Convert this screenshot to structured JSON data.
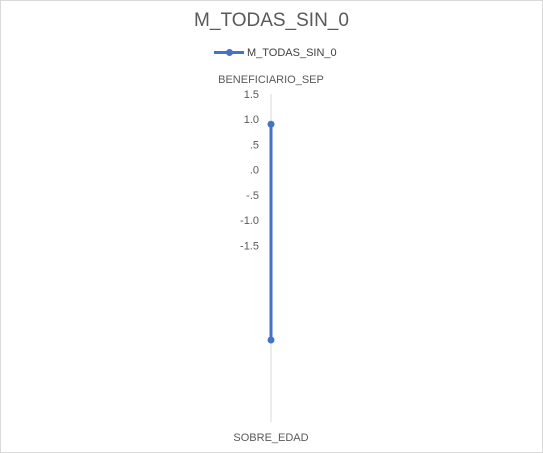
{
  "chart_data": {
    "type": "radar",
    "title": "M_TODAS_SIN_0",
    "legend": {
      "position": "top",
      "entries": [
        "M_TODAS_SIN_0"
      ]
    },
    "categories": [
      "BENEFICIARIO_SEP",
      "SOBRE_EDAD"
    ],
    "series": [
      {
        "name": "M_TODAS_SIN_0",
        "values": [
          0.9,
          -2.99
        ],
        "color": "#4472C4"
      }
    ],
    "radial_axis": {
      "ticks": [
        "1.5",
        "1.0",
        ".5",
        ".0",
        "-.5",
        "-1.0",
        "-1.5"
      ],
      "tick_values": [
        1.5,
        1.0,
        0.5,
        0.0,
        -0.5,
        -1.0,
        -1.5
      ],
      "range": [
        -5,
        1.5
      ]
    },
    "grid": true
  }
}
